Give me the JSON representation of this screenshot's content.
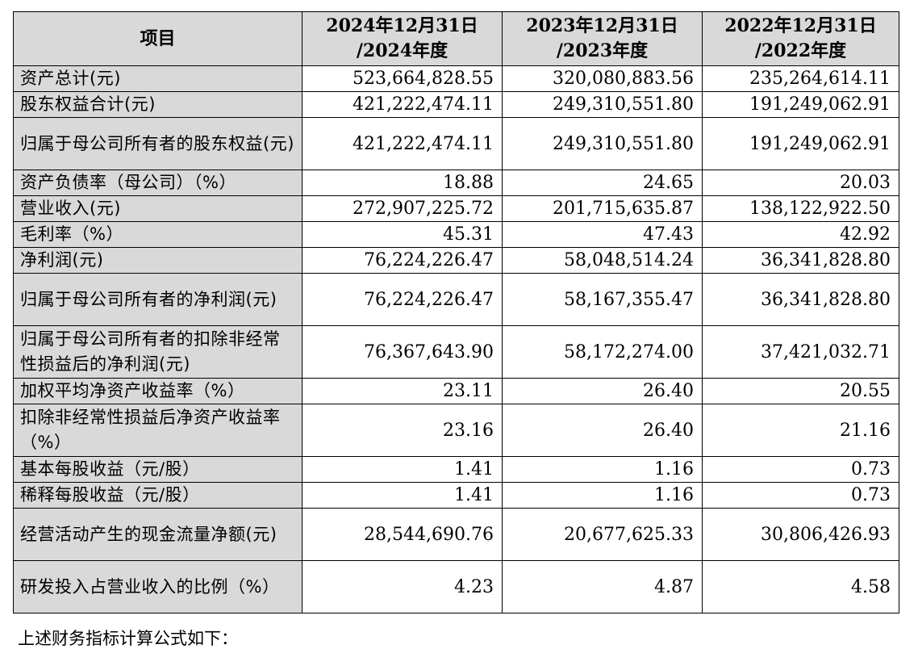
{
  "table": {
    "headers": [
      {
        "line1": "项目",
        "line2": ""
      },
      {
        "line1": "2024年12月31日",
        "line2": "/2024年度"
      },
      {
        "line1": "2023年12月31日",
        "line2": "/2023年度"
      },
      {
        "line1": "2022年12月31日",
        "line2": "/2022年度"
      }
    ],
    "rows": [
      {
        "label": "资产总计(元)",
        "v2024": "523,664,828.55",
        "v2023": "320,080,883.56",
        "v2022": "235,264,614.11"
      },
      {
        "label": "股东权益合计(元)",
        "v2024": "421,222,474.11",
        "v2023": "249,310,551.80",
        "v2022": "191,249,062.91"
      },
      {
        "label": "归属于母公司所有者的股东权益(元)",
        "v2024": "421,222,474.11",
        "v2023": "249,310,551.80",
        "v2022": "191,249,062.91"
      },
      {
        "label": "资产负债率（母公司）（%）",
        "v2024": "18.88",
        "v2023": "24.65",
        "v2022": "20.03"
      },
      {
        "label": "营业收入(元)",
        "v2024": "272,907,225.72",
        "v2023": "201,715,635.87",
        "v2022": "138,122,922.50"
      },
      {
        "label": "毛利率（%）",
        "v2024": "45.31",
        "v2023": "47.43",
        "v2022": "42.92"
      },
      {
        "label": "净利润(元)",
        "v2024": "76,224,226.47",
        "v2023": "58,048,514.24",
        "v2022": "36,341,828.80"
      },
      {
        "label": "归属于母公司所有者的净利润(元)",
        "v2024": "76,224,226.47",
        "v2023": "58,167,355.47",
        "v2022": "36,341,828.80"
      },
      {
        "label": "归属于母公司所有者的扣除非经常性损益后的净利润(元)",
        "v2024": "76,367,643.90",
        "v2023": "58,172,274.00",
        "v2022": "37,421,032.71"
      },
      {
        "label": "加权平均净资产收益率（%）",
        "v2024": "23.11",
        "v2023": "26.40",
        "v2022": "20.55"
      },
      {
        "label": "扣除非经常性损益后净资产收益率（%）",
        "v2024": "23.16",
        "v2023": "26.40",
        "v2022": "21.16"
      },
      {
        "label": "基本每股收益（元/股）",
        "v2024": "1.41",
        "v2023": "1.16",
        "v2022": "0.73"
      },
      {
        "label": "稀释每股收益（元/股）",
        "v2024": "1.41",
        "v2023": "1.16",
        "v2022": "0.73"
      },
      {
        "label": "经营活动产生的现金流量净额(元)",
        "v2024": "28,544,690.76",
        "v2023": "20,677,625.33",
        "v2022": "30,806,426.93"
      },
      {
        "label": "研发投入占营业收入的比例（%）",
        "v2024": "4.23",
        "v2023": "4.87",
        "v2022": "4.58"
      }
    ]
  },
  "footnote": "上述财务指标计算公式如下："
}
